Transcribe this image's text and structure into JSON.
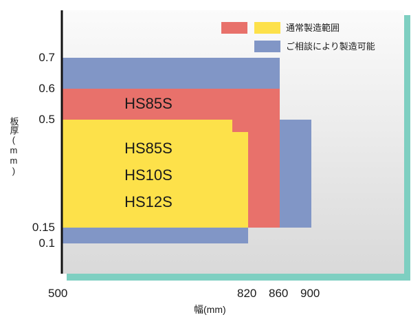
{
  "chart_data": {
    "type": "area",
    "title": "",
    "x_ticks": [
      "500",
      "820",
      "860",
      "900"
    ],
    "y_ticks": [
      "0.7",
      "0.6",
      "0.5",
      "0.15",
      "0.1"
    ],
    "xlabel": "幅(mm)",
    "ylabel": "板厚(mm)",
    "legend": {
      "placement": "top-right",
      "entries": [
        {
          "name": "通常製造範囲",
          "colors": [
            "#e8716b",
            "#fde14a"
          ]
        },
        {
          "name": "ご相談により製造可能",
          "colors": [
            "#8196c6"
          ]
        }
      ]
    },
    "regions": [
      {
        "name": "ご相談により製造可能",
        "color": "#8196c6",
        "polygon": [
          [
            500,
            0.1
          ],
          [
            820,
            0.1
          ],
          [
            820,
            0.15
          ],
          [
            900,
            0.15
          ],
          [
            900,
            0.5
          ],
          [
            860,
            0.5
          ],
          [
            860,
            0.7
          ],
          [
            500,
            0.7
          ]
        ]
      },
      {
        "name": "HS85S",
        "color": "#e8716b",
        "polygon": [
          [
            500,
            0.15
          ],
          [
            860,
            0.15
          ],
          [
            860,
            0.6
          ],
          [
            500,
            0.6
          ]
        ]
      },
      {
        "name": "HS85S / HS10S / HS12S",
        "color": "#fde14a",
        "polygon": [
          [
            500,
            0.15
          ],
          [
            820,
            0.15
          ],
          [
            820,
            0.48
          ],
          [
            815,
            0.48
          ],
          [
            815,
            0.5
          ],
          [
            500,
            0.5
          ]
        ]
      }
    ],
    "region_labels": [
      {
        "lines": [
          "HS85S"
        ],
        "x": 660,
        "y": 0.55
      },
      {
        "lines": [
          "HS85S",
          "HS10S",
          "HS12S"
        ],
        "x": 660,
        "y": 0.33
      }
    ],
    "colors": {
      "plot_bg_top": "#fbfbfb",
      "plot_bg_bottom": "#d9d9d9",
      "axis": "#111111",
      "shadow": "#7ecfc1"
    }
  }
}
